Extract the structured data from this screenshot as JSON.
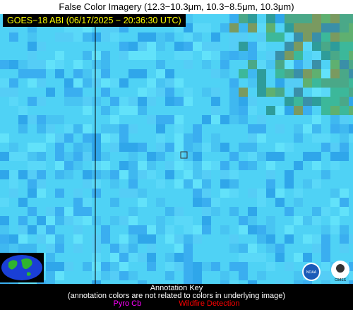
{
  "header": {
    "title": "False Color Imagery (12.3−10.3μm, 10.3−8.5μm, 10.3μm)",
    "timestamp_label": "GOES−18 ABI (06/17/2025 − 20:36:30 UTC)"
  },
  "annotation_key": {
    "title": "Annotation Key",
    "note": "(annotation colors are not related to colors in underlying image)",
    "items": [
      "Pyro Cb",
      "Wildfire Detection"
    ]
  },
  "logos": {
    "noaa": "NOAA",
    "cimss": "CIMSS"
  }
}
